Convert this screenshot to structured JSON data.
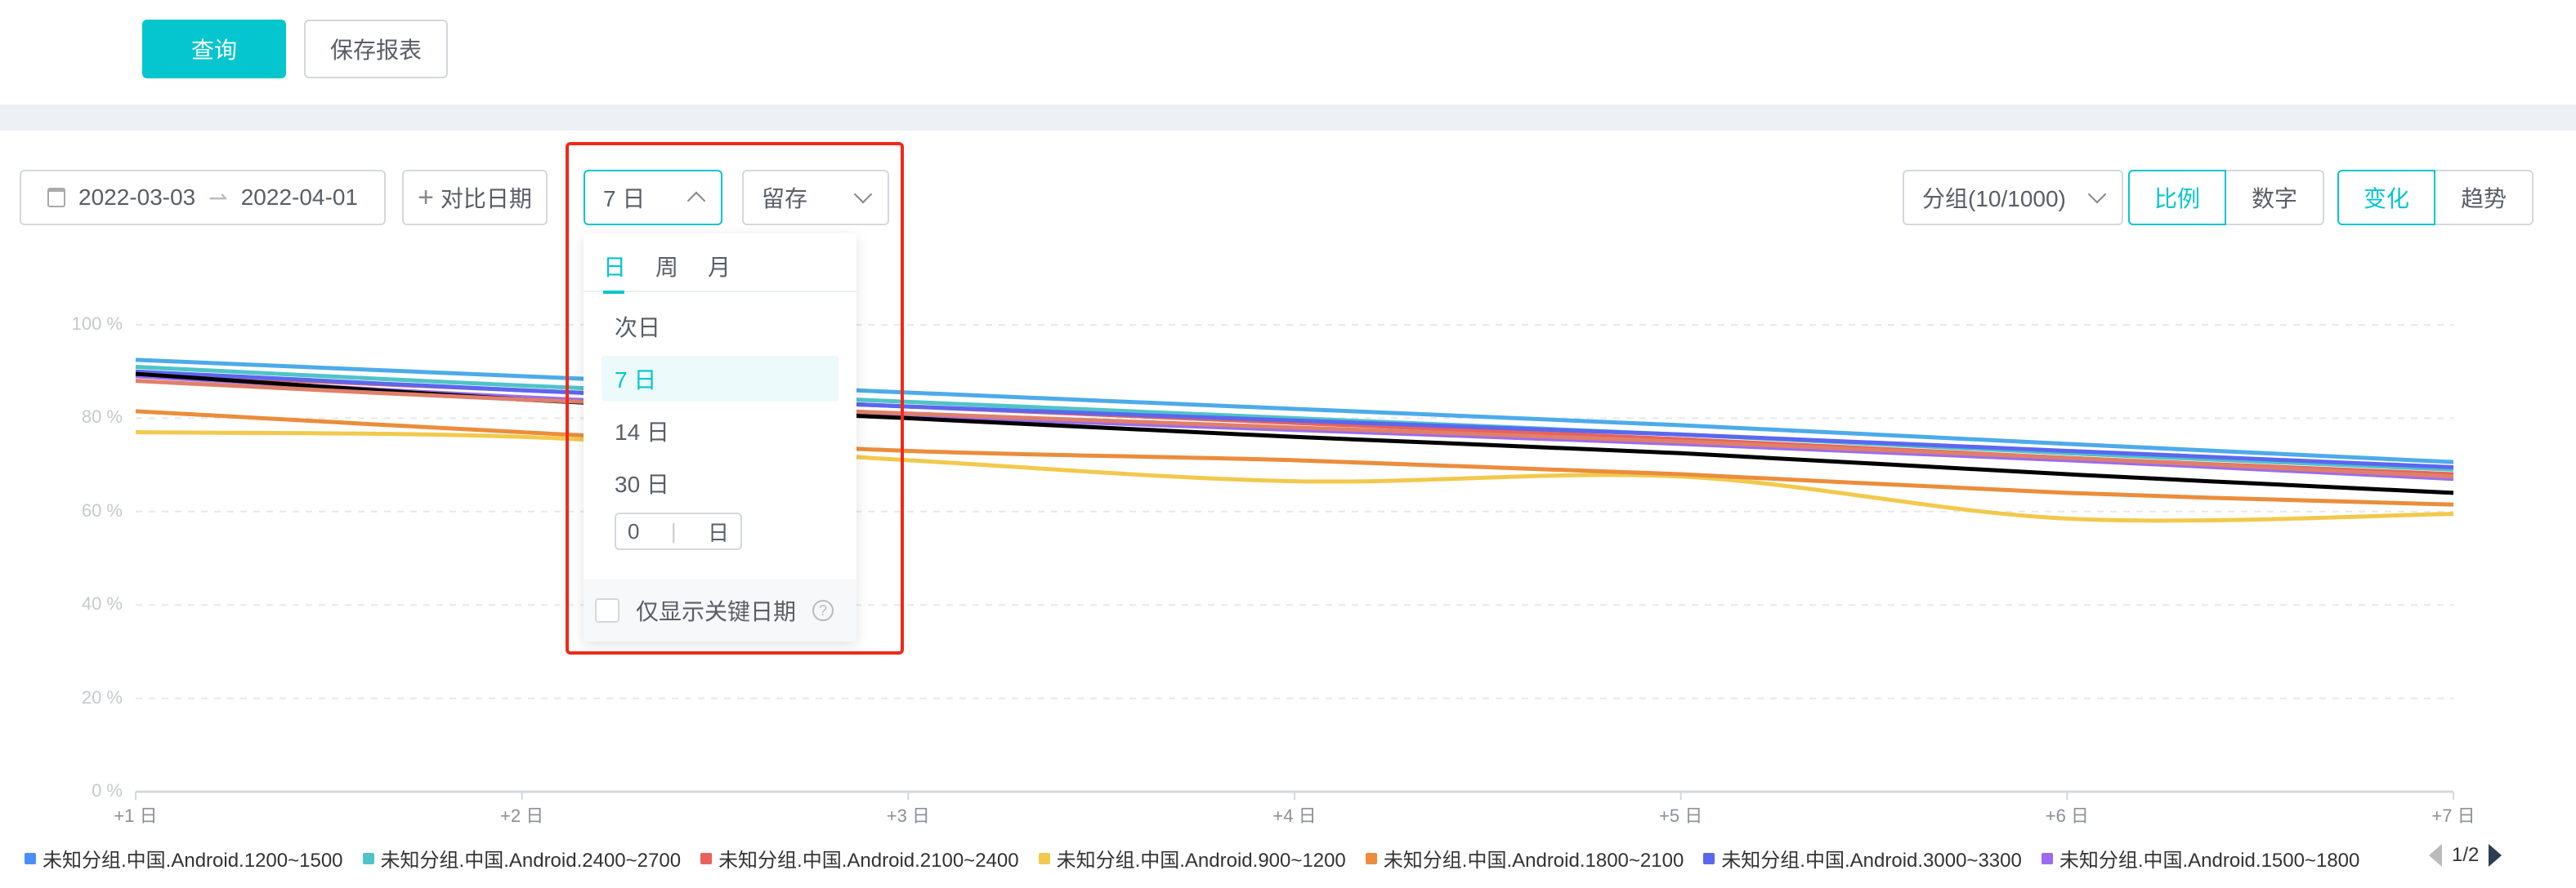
{
  "top": {
    "query_label": "查询",
    "save_label": "保存报表"
  },
  "toolbar": {
    "date_start": "2022-03-03",
    "date_end": "2022-04-01",
    "compare_label": "对比日期",
    "period_value": "7 日",
    "metric_value": "留存",
    "group_label": "分组(10/1000)",
    "ratio_label": "比例",
    "number_label": "数字",
    "change_label": "变化",
    "trend_label": "趋势"
  },
  "dropdown": {
    "tabs": [
      "日",
      "周",
      "月"
    ],
    "active_tab": "日",
    "options": [
      "次日",
      "7 日",
      "14 日",
      "30 日"
    ],
    "selected": "7 日",
    "custom_value": "0",
    "custom_unit": "日",
    "key_dates_label": "仅显示关键日期"
  },
  "colors": {
    "accent": "#05c6cf",
    "highlight_box": "#f0291a"
  },
  "chart_data": {
    "type": "line",
    "categories": [
      "+1 日",
      "+2 日",
      "+3 日",
      "+4 日",
      "+5 日",
      "+6 日",
      "+7 日"
    ],
    "y_ticks": [
      "0 %",
      "20 %",
      "40 %",
      "60 %",
      "80 %",
      "100 %"
    ],
    "ylim": [
      0,
      100
    ],
    "grid": true,
    "legend": "bottom",
    "series": [
      {
        "name": "未知分组.中国.Android.1200~1500",
        "color": "#4dabeb",
        "legend_color": "#4a8ff7",
        "values": [
          92.5,
          89,
          85.5,
          82,
          78.5,
          74.5,
          70.6
        ]
      },
      {
        "name": "未知分组.中国.Android.2400~2700",
        "color": "#4fc4c8",
        "values": [
          91,
          87,
          83.5,
          80,
          76.5,
          72.5,
          69
        ]
      },
      {
        "name": "未知分组.中国.Android.2100~2400",
        "color": "#e8625c",
        "values": [
          89.5,
          86,
          82.5,
          79,
          75.5,
          71.5,
          68
        ]
      },
      {
        "name": "未知分组.中国.Android.900~1200",
        "color": "#f2c94c",
        "values": [
          77,
          76,
          71,
          66.5,
          67.5,
          58.5,
          59.5
        ]
      },
      {
        "name": "未知分组.中国.Android.1800~2100",
        "color": "#eb8d3c",
        "values": [
          81.5,
          77,
          73,
          71,
          68,
          64,
          61.5
        ]
      },
      {
        "name": "未知分组.中国.Android.3000~3300",
        "color": "#5b67ef",
        "values": [
          90,
          86,
          82.5,
          79.5,
          76.5,
          73,
          69.5
        ]
      },
      {
        "name": "未知分组.中国.Android.1500~1800",
        "color": "#9a6cf0",
        "values": [
          89,
          84.5,
          80.5,
          77.5,
          74.5,
          71,
          67
        ]
      },
      {
        "color": "#000000",
        "values": [
          89.5,
          84,
          80,
          76,
          72.5,
          68,
          64
        ]
      },
      {
        "color": "#e07f6a",
        "values": [
          88,
          84,
          81,
          78,
          75,
          71.5,
          67.5
        ]
      }
    ]
  },
  "legend_pager": "1/2"
}
